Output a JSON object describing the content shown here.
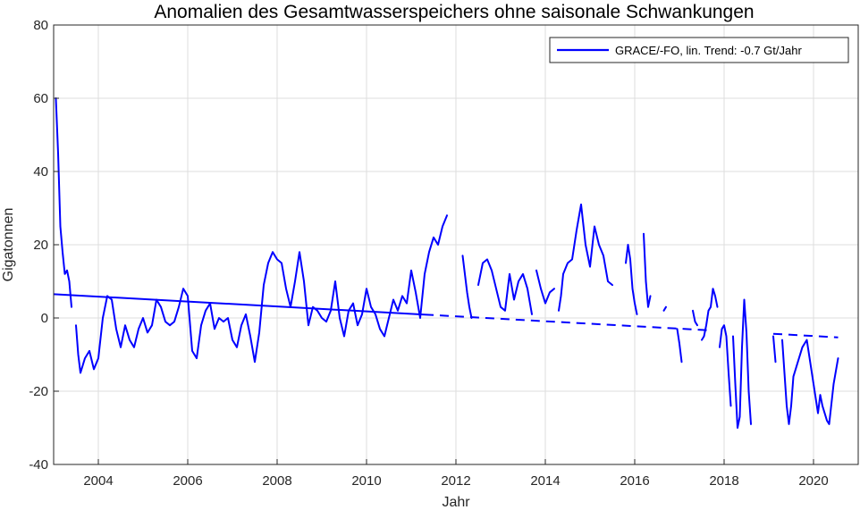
{
  "chart_data": {
    "type": "line",
    "title": "Anomalien des Gesamtwasserspeichers ohne saisonale Schwankungen",
    "xlabel": "Jahr",
    "ylabel": "Gigatonnen",
    "xlim": [
      2003.0,
      2021.0
    ],
    "ylim": [
      -40,
      80
    ],
    "x_ticks": [
      2004,
      2006,
      2008,
      2010,
      2012,
      2014,
      2016,
      2018,
      2020
    ],
    "y_ticks": [
      -40,
      -20,
      0,
      20,
      40,
      60,
      80
    ],
    "grid": true,
    "legend_position": "top-right",
    "series": [
      {
        "name": "GRACE/-FO, lin. Trend: -0.7 Gt/Jahr",
        "color": "#0000ff",
        "segments": [
          [
            [
              2003.05,
              60
            ],
            [
              2003.1,
              45
            ],
            [
              2003.15,
              25
            ],
            [
              2003.2,
              18
            ],
            [
              2003.25,
              12
            ],
            [
              2003.3,
              13
            ],
            [
              2003.35,
              10
            ],
            [
              2003.4,
              3
            ]
          ],
          [
            [
              2003.5,
              -2
            ],
            [
              2003.55,
              -10
            ],
            [
              2003.6,
              -15
            ],
            [
              2003.7,
              -11
            ],
            [
              2003.8,
              -9
            ],
            [
              2003.9,
              -14
            ],
            [
              2004.0,
              -11
            ],
            [
              2004.1,
              0
            ],
            [
              2004.2,
              6
            ],
            [
              2004.3,
              5
            ],
            [
              2004.4,
              -3
            ],
            [
              2004.5,
              -8
            ],
            [
              2004.6,
              -2
            ],
            [
              2004.7,
              -6
            ],
            [
              2004.8,
              -8
            ],
            [
              2004.9,
              -3
            ],
            [
              2005.0,
              0
            ],
            [
              2005.1,
              -4
            ],
            [
              2005.2,
              -2
            ],
            [
              2005.3,
              5
            ],
            [
              2005.4,
              3
            ],
            [
              2005.5,
              -1
            ],
            [
              2005.6,
              -2
            ],
            [
              2005.7,
              -1
            ],
            [
              2005.8,
              3
            ],
            [
              2005.9,
              8
            ],
            [
              2006.0,
              6
            ],
            [
              2006.1,
              -9
            ],
            [
              2006.2,
              -11
            ],
            [
              2006.3,
              -2
            ],
            [
              2006.4,
              2
            ],
            [
              2006.5,
              4
            ],
            [
              2006.6,
              -3
            ],
            [
              2006.7,
              0
            ],
            [
              2006.8,
              -1
            ],
            [
              2006.9,
              0
            ],
            [
              2007.0,
              -6
            ],
            [
              2007.1,
              -8
            ],
            [
              2007.2,
              -2
            ],
            [
              2007.3,
              1
            ],
            [
              2007.4,
              -5
            ],
            [
              2007.5,
              -12
            ],
            [
              2007.6,
              -4
            ],
            [
              2007.7,
              9
            ],
            [
              2007.8,
              15
            ],
            [
              2007.9,
              18
            ],
            [
              2008.0,
              16
            ],
            [
              2008.1,
              15
            ],
            [
              2008.2,
              8
            ],
            [
              2008.3,
              3
            ],
            [
              2008.4,
              10
            ],
            [
              2008.5,
              18
            ],
            [
              2008.6,
              10
            ],
            [
              2008.7,
              -2
            ],
            [
              2008.8,
              3
            ],
            [
              2008.9,
              2
            ],
            [
              2009.0,
              0
            ],
            [
              2009.1,
              -1
            ],
            [
              2009.2,
              2
            ],
            [
              2009.3,
              10
            ],
            [
              2009.4,
              0
            ],
            [
              2009.5,
              -5
            ],
            [
              2009.6,
              2
            ],
            [
              2009.7,
              4
            ],
            [
              2009.8,
              -2
            ],
            [
              2009.9,
              1
            ],
            [
              2010.0,
              8
            ],
            [
              2010.1,
              3
            ],
            [
              2010.2,
              1
            ],
            [
              2010.3,
              -3
            ],
            [
              2010.4,
              -5
            ],
            [
              2010.5,
              0
            ],
            [
              2010.6,
              5
            ],
            [
              2010.7,
              2
            ],
            [
              2010.8,
              6
            ],
            [
              2010.9,
              4
            ],
            [
              2011.0,
              13
            ],
            [
              2011.1,
              7
            ],
            [
              2011.2,
              0
            ],
            [
              2011.3,
              12
            ],
            [
              2011.4,
              18
            ],
            [
              2011.5,
              22
            ],
            [
              2011.6,
              20
            ],
            [
              2011.7,
              25
            ],
            [
              2011.8,
              28
            ]
          ],
          [
            [
              2012.15,
              17
            ],
            [
              2012.2,
              12
            ],
            [
              2012.25,
              7
            ],
            [
              2012.3,
              3
            ],
            [
              2012.35,
              0
            ]
          ],
          [
            [
              2012.5,
              9
            ],
            [
              2012.55,
              12
            ],
            [
              2012.6,
              15
            ],
            [
              2012.7,
              16
            ],
            [
              2012.8,
              13
            ],
            [
              2012.9,
              8
            ],
            [
              2013.0,
              3
            ],
            [
              2013.1,
              2
            ],
            [
              2013.2,
              12
            ],
            [
              2013.3,
              5
            ],
            [
              2013.4,
              10
            ],
            [
              2013.5,
              12
            ],
            [
              2013.6,
              8
            ],
            [
              2013.7,
              1
            ]
          ],
          [
            [
              2013.8,
              13
            ],
            [
              2013.9,
              8
            ],
            [
              2014.0,
              4
            ],
            [
              2014.1,
              7
            ],
            [
              2014.2,
              8
            ]
          ],
          [
            [
              2014.3,
              2
            ],
            [
              2014.35,
              6
            ],
            [
              2014.4,
              12
            ],
            [
              2014.5,
              15
            ],
            [
              2014.6,
              16
            ],
            [
              2014.7,
              24
            ],
            [
              2014.8,
              31
            ],
            [
              2014.9,
              20
            ],
            [
              2015.0,
              14
            ],
            [
              2015.1,
              25
            ],
            [
              2015.2,
              20
            ],
            [
              2015.3,
              17
            ],
            [
              2015.4,
              10
            ],
            [
              2015.5,
              9
            ]
          ],
          [
            [
              2015.8,
              15
            ],
            [
              2015.85,
              20
            ],
            [
              2015.9,
              16
            ],
            [
              2015.95,
              8
            ],
            [
              2016.0,
              4
            ],
            [
              2016.05,
              1
            ]
          ],
          [
            [
              2016.2,
              23
            ],
            [
              2016.25,
              10
            ],
            [
              2016.3,
              3
            ],
            [
              2016.35,
              6
            ]
          ],
          [
            [
              2016.65,
              2
            ],
            [
              2016.7,
              3
            ]
          ],
          [
            [
              2016.95,
              -3
            ],
            [
              2017.0,
              -7
            ],
            [
              2017.05,
              -12
            ]
          ],
          [
            [
              2017.3,
              2
            ],
            [
              2017.35,
              -1
            ],
            [
              2017.4,
              -2
            ]
          ],
          [
            [
              2017.5,
              -6
            ],
            [
              2017.55,
              -5
            ],
            [
              2017.6,
              -2
            ],
            [
              2017.65,
              2
            ],
            [
              2017.7,
              3
            ],
            [
              2017.75,
              8
            ],
            [
              2017.8,
              6
            ],
            [
              2017.85,
              3
            ]
          ],
          [
            [
              2017.9,
              -8
            ],
            [
              2017.95,
              -3
            ],
            [
              2018.0,
              -2
            ],
            [
              2018.05,
              -5
            ],
            [
              2018.1,
              -15
            ],
            [
              2018.15,
              -24
            ]
          ],
          [
            [
              2018.2,
              -5
            ],
            [
              2018.25,
              -18
            ],
            [
              2018.3,
              -30
            ],
            [
              2018.35,
              -27
            ],
            [
              2018.4,
              -8
            ],
            [
              2018.45,
              5
            ],
            [
              2018.5,
              -4
            ],
            [
              2018.55,
              -20
            ],
            [
              2018.6,
              -29
            ]
          ],
          [
            [
              2019.1,
              -5
            ],
            [
              2019.15,
              -12
            ]
          ],
          [
            [
              2019.3,
              -6
            ],
            [
              2019.35,
              -15
            ],
            [
              2019.4,
              -24
            ],
            [
              2019.45,
              -29
            ],
            [
              2019.5,
              -24
            ],
            [
              2019.55,
              -16
            ],
            [
              2019.65,
              -12
            ],
            [
              2019.75,
              -8
            ],
            [
              2019.85,
              -6
            ],
            [
              2019.95,
              -14
            ],
            [
              2020.05,
              -22
            ],
            [
              2020.1,
              -26
            ],
            [
              2020.15,
              -21
            ],
            [
              2020.2,
              -24
            ],
            [
              2020.3,
              -28
            ],
            [
              2020.35,
              -29
            ],
            [
              2020.45,
              -18
            ],
            [
              2020.55,
              -11
            ]
          ]
        ]
      }
    ],
    "trend_line": {
      "color": "#0000ff",
      "start": [
        2003.0,
        6.5
      ],
      "end": [
        2020.55,
        -5.3
      ],
      "solid_until": 2011.3,
      "style_after": "dashed",
      "visible_ranges": [
        [
          2003.0,
          2017.75
        ],
        [
          2019.1,
          2020.55
        ]
      ]
    }
  }
}
